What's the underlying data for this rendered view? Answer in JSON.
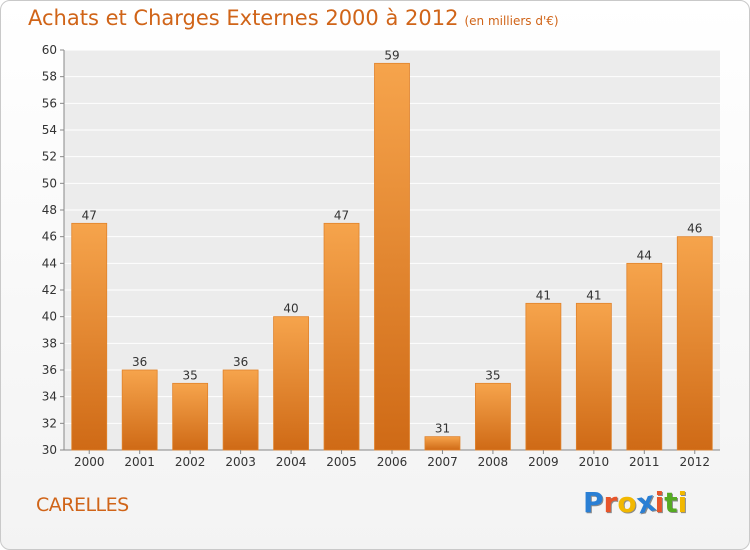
{
  "chart_data": {
    "type": "bar",
    "title": "Achats et Charges Externes 2000 à 2012",
    "subtitle": "(en milliers d'€)",
    "categories": [
      "2000",
      "2001",
      "2002",
      "2003",
      "2004",
      "2005",
      "2006",
      "2007",
      "2008",
      "2009",
      "2010",
      "2011",
      "2012"
    ],
    "values": [
      47,
      36,
      35,
      36,
      40,
      47,
      59,
      31,
      35,
      41,
      41,
      44,
      46
    ],
    "ylim": [
      30,
      60
    ],
    "yticks": [
      30,
      32,
      34,
      36,
      38,
      40,
      42,
      44,
      46,
      48,
      50,
      52,
      54,
      56,
      58,
      60
    ],
    "grid": true,
    "bar_color": "#f08c30",
    "xlabel": "",
    "ylabel": ""
  },
  "commune": "CARELLES",
  "logo": {
    "letters": [
      "P",
      "r",
      "o",
      "x",
      "i",
      "t",
      "i"
    ],
    "colors": [
      "#2a7fd4",
      "#e8552a",
      "#f2b800",
      "#2a7fd4",
      "#e8552a",
      "#55aa22",
      "#f2b800"
    ]
  }
}
